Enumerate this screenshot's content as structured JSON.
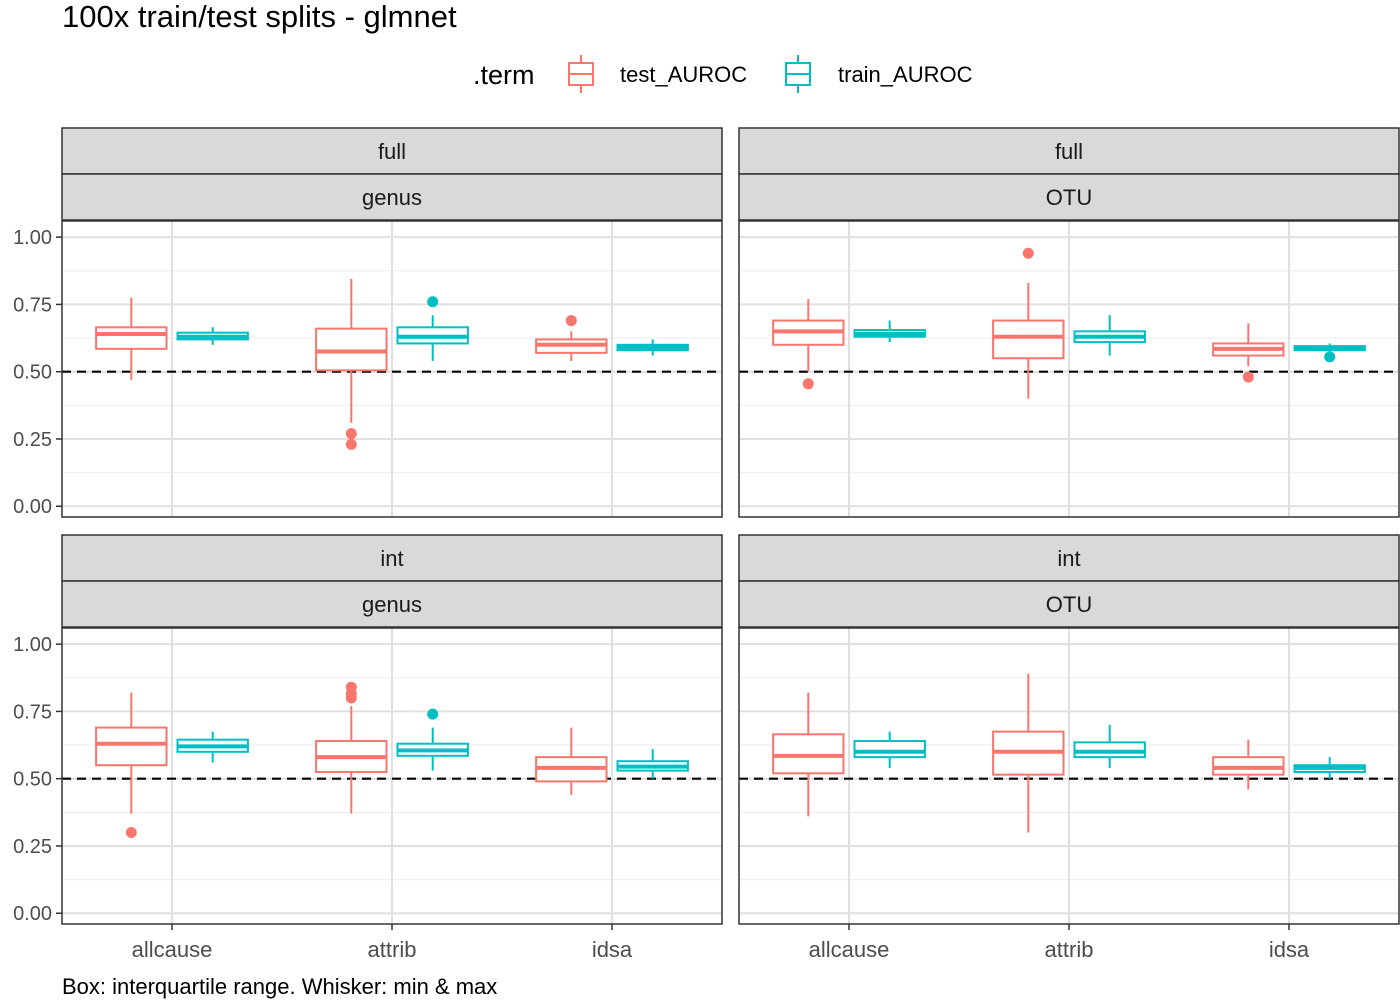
{
  "chart_data": {
    "type": "boxplot",
    "title": "100x train/test splits - glmnet",
    "caption": "Box: interquartile range. Whisker: min & max",
    "legend": {
      "title": ".term",
      "position": "top",
      "entries": [
        {
          "name": "test_AUROC",
          "color": "#F8766D"
        },
        {
          "name": "train_AUROC",
          "color": "#00BFC4"
        }
      ]
    },
    "reference_line": {
      "y": 0.5,
      "style": "dashed"
    },
    "y_ticks": [
      "0.00",
      "0.25",
      "0.50",
      "0.75",
      "1.00"
    ],
    "ylim": [
      -0.04,
      1.06
    ],
    "categories": [
      "allcause",
      "attrib",
      "idsa"
    ],
    "grid": true,
    "panels": [
      {
        "strip_top": "full",
        "strip_bottom": "genus",
        "boxes": [
          {
            "cat": "allcause",
            "term": "test_AUROC",
            "min": 0.47,
            "q1": 0.585,
            "median": 0.64,
            "q3": 0.665,
            "max": 0.775,
            "outliers": []
          },
          {
            "cat": "allcause",
            "term": "train_AUROC",
            "min": 0.6,
            "q1": 0.62,
            "median": 0.63,
            "q3": 0.645,
            "max": 0.665,
            "outliers": []
          },
          {
            "cat": "attrib",
            "term": "test_AUROC",
            "min": 0.31,
            "q1": 0.505,
            "median": 0.575,
            "q3": 0.66,
            "max": 0.845,
            "outliers": [
              0.27,
              0.23
            ]
          },
          {
            "cat": "attrib",
            "term": "train_AUROC",
            "min": 0.54,
            "q1": 0.605,
            "median": 0.63,
            "q3": 0.665,
            "max": 0.71,
            "outliers": [
              0.76
            ]
          },
          {
            "cat": "idsa",
            "term": "test_AUROC",
            "min": 0.54,
            "q1": 0.57,
            "median": 0.6,
            "q3": 0.62,
            "max": 0.65,
            "outliers": [
              0.69
            ]
          },
          {
            "cat": "idsa",
            "term": "train_AUROC",
            "min": 0.56,
            "q1": 0.58,
            "median": 0.59,
            "q3": 0.6,
            "max": 0.62,
            "outliers": []
          }
        ]
      },
      {
        "strip_top": "full",
        "strip_bottom": "OTU",
        "boxes": [
          {
            "cat": "allcause",
            "term": "test_AUROC",
            "min": 0.5,
            "q1": 0.6,
            "median": 0.65,
            "q3": 0.69,
            "max": 0.77,
            "outliers": [
              0.455
            ]
          },
          {
            "cat": "allcause",
            "term": "train_AUROC",
            "min": 0.61,
            "q1": 0.63,
            "median": 0.64,
            "q3": 0.655,
            "max": 0.69,
            "outliers": []
          },
          {
            "cat": "attrib",
            "term": "test_AUROC",
            "min": 0.4,
            "q1": 0.55,
            "median": 0.63,
            "q3": 0.69,
            "max": 0.83,
            "outliers": [
              0.94
            ]
          },
          {
            "cat": "attrib",
            "term": "train_AUROC",
            "min": 0.56,
            "q1": 0.61,
            "median": 0.63,
            "q3": 0.65,
            "max": 0.71,
            "outliers": []
          },
          {
            "cat": "idsa",
            "term": "test_AUROC",
            "min": 0.52,
            "q1": 0.56,
            "median": 0.585,
            "q3": 0.605,
            "max": 0.68,
            "outliers": [
              0.48
            ]
          },
          {
            "cat": "idsa",
            "term": "train_AUROC",
            "min": 0.57,
            "q1": 0.58,
            "median": 0.59,
            "q3": 0.595,
            "max": 0.605,
            "outliers": [
              0.555
            ]
          }
        ]
      },
      {
        "strip_top": "int",
        "strip_bottom": "genus",
        "boxes": [
          {
            "cat": "allcause",
            "term": "test_AUROC",
            "min": 0.37,
            "q1": 0.55,
            "median": 0.63,
            "q3": 0.69,
            "max": 0.82,
            "outliers": [
              0.3
            ]
          },
          {
            "cat": "allcause",
            "term": "train_AUROC",
            "min": 0.56,
            "q1": 0.6,
            "median": 0.62,
            "q3": 0.645,
            "max": 0.675,
            "outliers": []
          },
          {
            "cat": "attrib",
            "term": "test_AUROC",
            "min": 0.37,
            "q1": 0.525,
            "median": 0.58,
            "q3": 0.64,
            "max": 0.77,
            "outliers": [
              0.84,
              0.815,
              0.8
            ]
          },
          {
            "cat": "attrib",
            "term": "train_AUROC",
            "min": 0.53,
            "q1": 0.585,
            "median": 0.605,
            "q3": 0.63,
            "max": 0.69,
            "outliers": [
              0.74
            ]
          },
          {
            "cat": "idsa",
            "term": "test_AUROC",
            "min": 0.44,
            "q1": 0.49,
            "median": 0.54,
            "q3": 0.58,
            "max": 0.69,
            "outliers": []
          },
          {
            "cat": "idsa",
            "term": "train_AUROC",
            "min": 0.5,
            "q1": 0.53,
            "median": 0.545,
            "q3": 0.565,
            "max": 0.61,
            "outliers": []
          }
        ]
      },
      {
        "strip_top": "int",
        "strip_bottom": "OTU",
        "boxes": [
          {
            "cat": "allcause",
            "term": "test_AUROC",
            "min": 0.36,
            "q1": 0.52,
            "median": 0.585,
            "q3": 0.665,
            "max": 0.82,
            "outliers": []
          },
          {
            "cat": "allcause",
            "term": "train_AUROC",
            "min": 0.54,
            "q1": 0.58,
            "median": 0.6,
            "q3": 0.64,
            "max": 0.675,
            "outliers": []
          },
          {
            "cat": "attrib",
            "term": "test_AUROC",
            "min": 0.3,
            "q1": 0.515,
            "median": 0.6,
            "q3": 0.675,
            "max": 0.89,
            "outliers": []
          },
          {
            "cat": "attrib",
            "term": "train_AUROC",
            "min": 0.54,
            "q1": 0.58,
            "median": 0.6,
            "q3": 0.635,
            "max": 0.7,
            "outliers": []
          },
          {
            "cat": "idsa",
            "term": "test_AUROC",
            "min": 0.46,
            "q1": 0.515,
            "median": 0.54,
            "q3": 0.58,
            "max": 0.645,
            "outliers": []
          },
          {
            "cat": "idsa",
            "term": "train_AUROC",
            "min": 0.5,
            "q1": 0.525,
            "median": 0.54,
            "q3": 0.55,
            "max": 0.58,
            "outliers": []
          }
        ]
      }
    ]
  }
}
